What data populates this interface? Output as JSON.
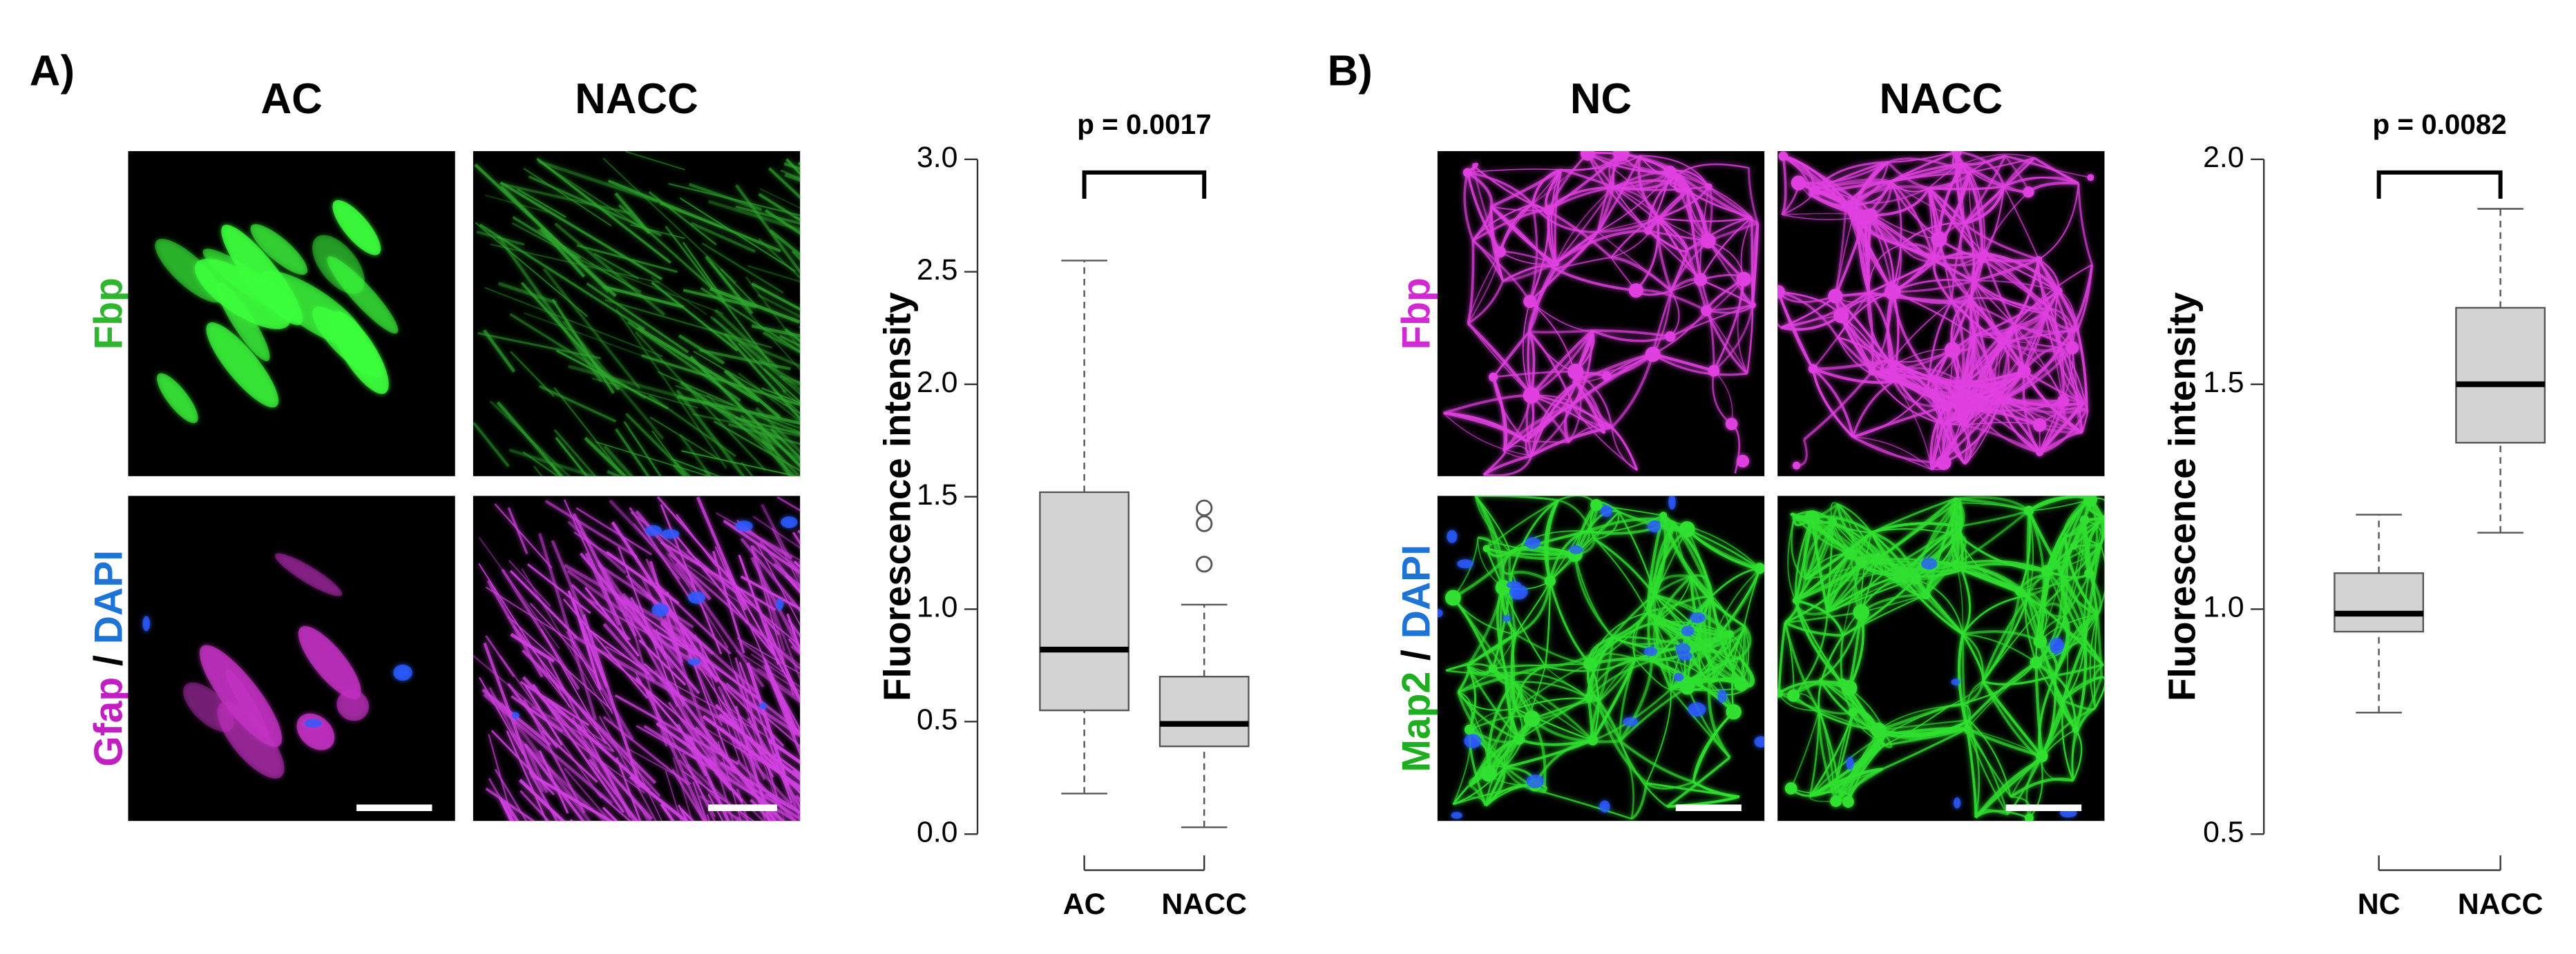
{
  "figure": {
    "panels": [
      {
        "label": "A)",
        "columns": [
          "AC",
          "NACC"
        ],
        "rows": [
          [
            {
              "text": "Fbp",
              "color": "#2fb52f"
            }
          ],
          [
            {
              "text": "Gfap",
              "color": "#c21fc2"
            },
            {
              "text": "/",
              "color": "#000000"
            },
            {
              "text": "DAPI",
              "color": "#1e73d6"
            }
          ]
        ]
      },
      {
        "label": "B)",
        "columns": [
          "NC",
          "NACC"
        ],
        "rows": [
          [
            {
              "text": "Fbp",
              "color": "#d22ad2"
            }
          ],
          [
            {
              "text": "Map2",
              "color": "#1fae1f"
            },
            {
              "text": "/",
              "color": "#000000"
            },
            {
              "text": "DAPI",
              "color": "#1e73d6"
            }
          ]
        ]
      }
    ]
  },
  "chart_data": [
    {
      "type": "box",
      "y_label": "Fluorescence intensity",
      "annotation": "p = 0.0017",
      "categories": [
        "AC",
        "NACC"
      ],
      "color": "#d3d3d3",
      "boxes": [
        {
          "whislo": 0.18,
          "q1": 0.55,
          "med": 0.82,
          "q3": 1.52,
          "whishi": 2.55
        },
        {
          "whislo": 0.03,
          "q1": 0.39,
          "med": 0.49,
          "q3": 0.7,
          "whishi": 1.02,
          "fliers": [
            1.2,
            1.38,
            1.45
          ]
        }
      ],
      "ylim": [
        0,
        3
      ],
      "yticks": [
        {
          "value": 0,
          "label": "0.0"
        },
        0.5,
        {
          "value": 1,
          "label": "1.0"
        },
        1.5,
        {
          "value": 2,
          "label": "2.0"
        },
        2.5,
        {
          "value": 3,
          "label": "3.0"
        }
      ]
    },
    {
      "type": "box",
      "y_label": "Fluorescence intensity",
      "annotation": "p = 0.0082",
      "categories": [
        "NC",
        "NACC"
      ],
      "color": "#d3d3d3",
      "boxes": [
        {
          "whislo": 0.77,
          "q1": 0.95,
          "med": 0.99,
          "q3": 1.08,
          "whishi": 1.21
        },
        {
          "whislo": 1.17,
          "q1": 1.37,
          "med": 1.5,
          "q3": 1.67,
          "whishi": 1.89
        }
      ],
      "ylim": [
        0.5,
        2.0
      ],
      "yticks": [
        0.5,
        {
          "value": 1,
          "label": "1.0"
        },
        1.5,
        {
          "value": 2,
          "label": "2.0"
        }
      ]
    }
  ]
}
